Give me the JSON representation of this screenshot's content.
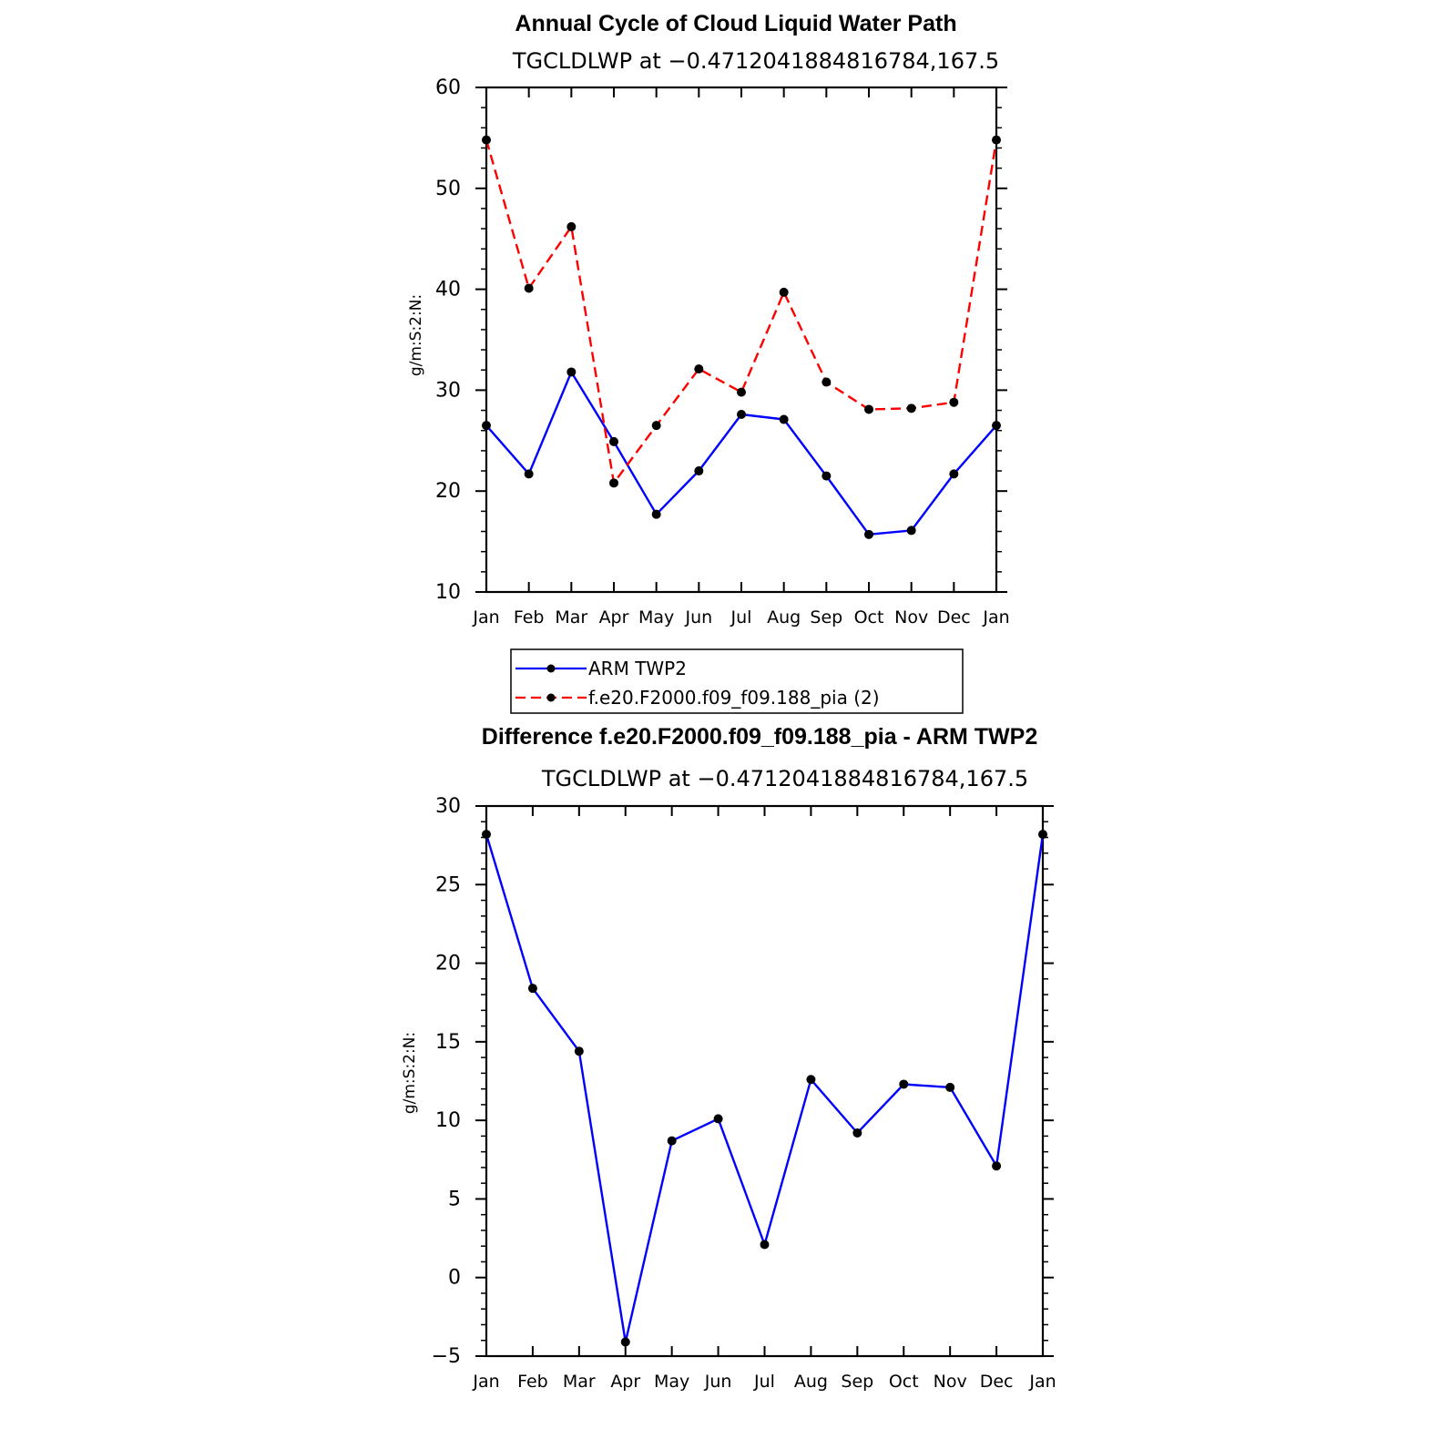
{
  "chart_data": [
    {
      "id": "top",
      "type": "line",
      "title": "Annual Cycle of Cloud Liquid Water Path",
      "subtitle": "TGCLDLWP  at −0.4712041884816784,167.5",
      "ylabel": "g/m:S:2:N:",
      "xlabel": "",
      "categories": [
        "Jan",
        "Feb",
        "Mar",
        "Apr",
        "May",
        "Jun",
        "Jul",
        "Aug",
        "Sep",
        "Oct",
        "Nov",
        "Dec",
        "Jan"
      ],
      "ylim": [
        10,
        60
      ],
      "yticks": [
        10,
        20,
        30,
        40,
        50,
        60
      ],
      "yminor": 2,
      "series": [
        {
          "name": "ARM  TWP2",
          "color": "#0000ff",
          "dash": "solid",
          "values": [
            26.5,
            21.7,
            31.8,
            24.9,
            17.7,
            22.0,
            27.6,
            27.1,
            21.5,
            15.7,
            16.1,
            21.7,
            26.5
          ]
        },
        {
          "name": "f.e20.F2000.f09_f09.188_pia (2)",
          "color": "#ff0000",
          "dash": "dashed",
          "values": [
            54.8,
            40.1,
            46.2,
            20.8,
            26.5,
            32.1,
            29.8,
            39.7,
            30.8,
            28.1,
            28.2,
            28.8,
            54.8
          ]
        }
      ],
      "legend": {
        "placement": "below",
        "entries": [
          "ARM  TWP2",
          "f.e20.F2000.f09_f09.188_pia (2)"
        ]
      }
    },
    {
      "id": "bottom",
      "type": "line",
      "title": "Difference f.e20.F2000.f09_f09.188_pia - ARM TWP2",
      "subtitle": "TGCLDLWP  at −0.4712041884816784,167.5",
      "ylabel": "g/m:S:2:N:",
      "xlabel": "",
      "categories": [
        "Jan",
        "Feb",
        "Mar",
        "Apr",
        "May",
        "Jun",
        "Jul",
        "Aug",
        "Sep",
        "Oct",
        "Nov",
        "Dec",
        "Jan"
      ],
      "ylim": [
        -5,
        30
      ],
      "yticks": [
        -5,
        0,
        5,
        10,
        15,
        20,
        25,
        30
      ],
      "ytick_labels": [
        "−5",
        "0",
        "5",
        "10",
        "15",
        "20",
        "25",
        "30"
      ],
      "yminor": 1,
      "series": [
        {
          "name": "Difference",
          "color": "#0000ff",
          "dash": "solid",
          "values": [
            28.2,
            18.4,
            14.4,
            -4.1,
            8.7,
            10.1,
            2.1,
            12.6,
            9.2,
            12.3,
            12.1,
            7.1,
            28.2
          ]
        }
      ]
    }
  ]
}
